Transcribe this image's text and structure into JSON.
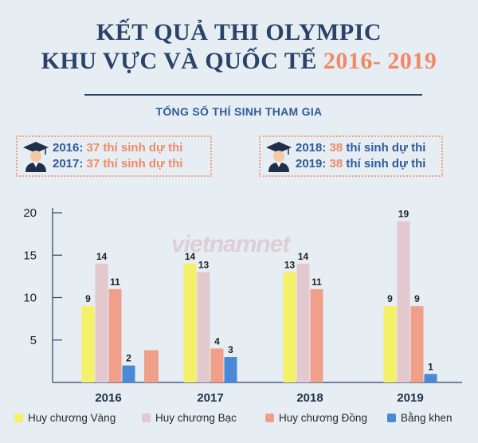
{
  "header": {
    "title_line1": "KẾT QUẢ THI OLYMPIC",
    "title_line2": "KHU VỰC VÀ QUỐC TẾ",
    "title_years": "2016- 2019",
    "subtitle": "TỔNG SỐ THÍ SINH THAM GIA"
  },
  "participants": [
    {
      "year": "2016:",
      "count": "37",
      "text": "thí sinh dự thi"
    },
    {
      "year": "2017:",
      "count": "37",
      "text": "thí sinh dự thi"
    },
    {
      "year": "2018:",
      "count": "38",
      "text": "thí sinh dự thi"
    },
    {
      "year": "2019:",
      "count": "38",
      "text": "thí sinh dự thi"
    }
  ],
  "watermark": "vietnamnet",
  "colors": {
    "title": "#2a4368",
    "accent": "#f08a66",
    "gold": "#f4f067",
    "silver": "#e3c9ce",
    "bronze": "#f0a08a",
    "merit": "#4a89d8"
  },
  "chart_data": {
    "type": "bar",
    "categories": [
      "2016",
      "2017",
      "2018",
      "2019"
    ],
    "series": [
      {
        "name": "Huy chương Vàng",
        "values": [
          9,
          14,
          13,
          9
        ],
        "color": "#f4f067"
      },
      {
        "name": "Huy chương Bạc",
        "values": [
          14,
          13,
          14,
          19
        ],
        "color": "#e3c9ce"
      },
      {
        "name": "Huy chương Đồng",
        "values": [
          11,
          4,
          11,
          9
        ],
        "color": "#f0a08a"
      },
      {
        "name": "Bằng khen",
        "values": [
          2,
          3,
          null,
          1
        ],
        "color": "#4a89d8"
      }
    ],
    "y_ticks": [
      5,
      10,
      15,
      20
    ],
    "ylim": [
      0,
      20
    ],
    "grid": false,
    "legend_position": "bottom"
  }
}
